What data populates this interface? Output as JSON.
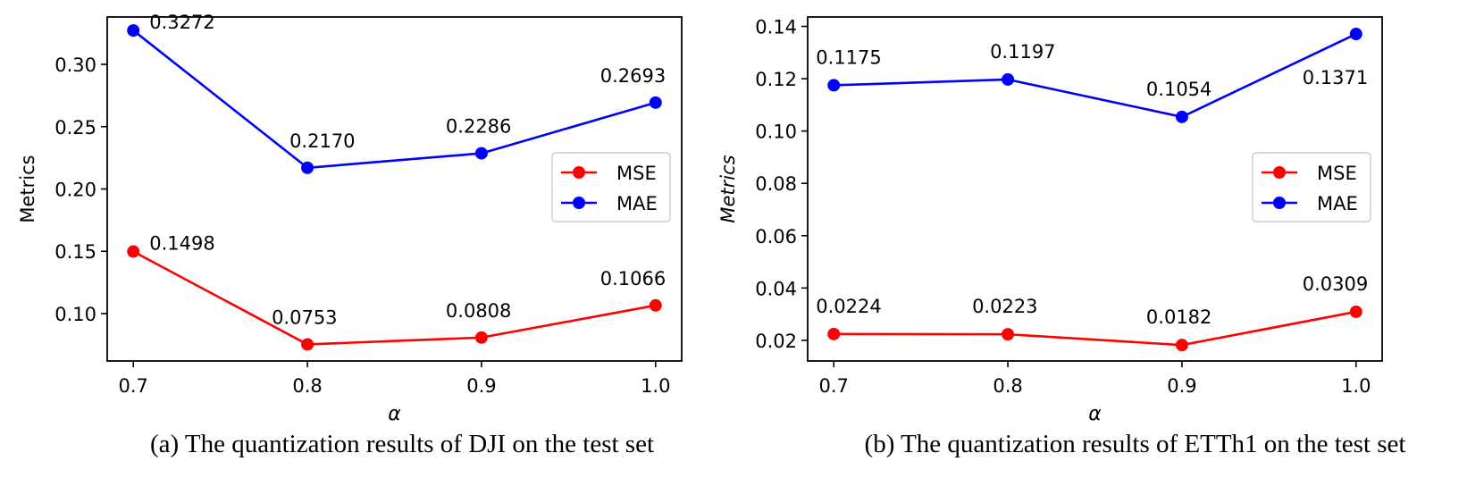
{
  "figure": {
    "captions": [
      "(a) The quantization results of DJI on the test set",
      "(b) The quantization results of ETTh1 on the test set"
    ]
  },
  "colors": {
    "MSE": "#ff0000",
    "MAE": "#0000ff"
  },
  "chart_data": [
    {
      "type": "line",
      "xlabel": "α",
      "ylabel": "Metrics",
      "x": [
        0.7,
        0.8,
        0.9,
        1.0
      ],
      "x_tick_labels": [
        "0.7",
        "0.8",
        "0.9",
        "1.0"
      ],
      "xlim": [
        0.685,
        1.015
      ],
      "ylim": [
        0.062,
        0.338
      ],
      "y_ticks": [
        0.1,
        0.15,
        0.2,
        0.25,
        0.3
      ],
      "y_tick_labels": [
        "0.10",
        "0.15",
        "0.20",
        "0.25",
        "0.30"
      ],
      "legend_position": "center-right",
      "grid": false,
      "series": [
        {
          "name": "MSE",
          "color": "#ff0000",
          "values": [
            0.1498,
            0.0753,
            0.0808,
            0.1066
          ],
          "labels": [
            "0.1498",
            "0.0753",
            "0.0808",
            "0.1066"
          ]
        },
        {
          "name": "MAE",
          "color": "#0000ff",
          "values": [
            0.3272,
            0.217,
            0.2286,
            0.2693
          ],
          "labels": [
            "0.3272",
            "0.2170",
            "0.2286",
            "0.2693"
          ]
        }
      ]
    },
    {
      "type": "line",
      "xlabel": "α",
      "ylabel": "Metrics",
      "x": [
        0.7,
        0.8,
        0.9,
        1.0
      ],
      "x_tick_labels": [
        "0.7",
        "0.8",
        "0.9",
        "1.0"
      ],
      "xlim": [
        0.685,
        1.015
      ],
      "ylim": [
        0.0121,
        0.1436
      ],
      "y_ticks": [
        0.02,
        0.04,
        0.06,
        0.08,
        0.1,
        0.12,
        0.14
      ],
      "y_tick_labels": [
        "0.02",
        "0.04",
        "0.06",
        "0.08",
        "0.10",
        "0.12",
        "0.14"
      ],
      "legend_position": "center-right",
      "grid": false,
      "series": [
        {
          "name": "MSE",
          "color": "#ff0000",
          "values": [
            0.0224,
            0.0223,
            0.0182,
            0.0309
          ],
          "labels": [
            "0.0224",
            "0.0223",
            "0.0182",
            "0.0309"
          ]
        },
        {
          "name": "MAE",
          "color": "#0000ff",
          "values": [
            0.1175,
            0.1197,
            0.1054,
            0.1371
          ],
          "labels": [
            "0.1175",
            "0.1197",
            "0.1054",
            "0.1371"
          ]
        }
      ]
    }
  ]
}
